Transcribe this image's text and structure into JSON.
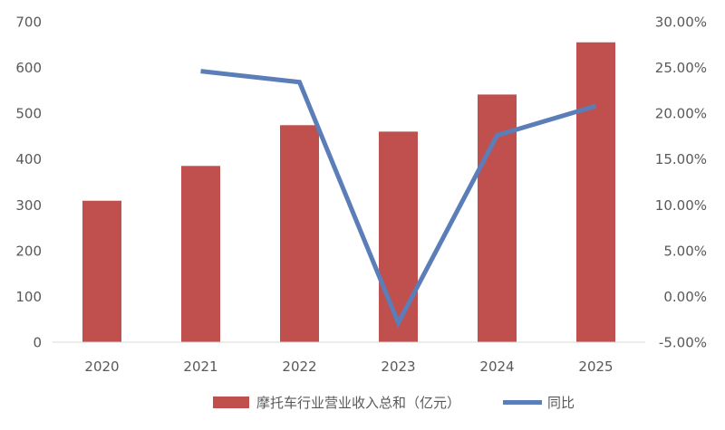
{
  "chart_data": {
    "type": "bar",
    "title": "",
    "categories": [
      "2020",
      "2021",
      "2022",
      "2023",
      "2024",
      "2025"
    ],
    "series": [
      {
        "name": "摩托车行业营业收入总和（亿元）",
        "type": "bar",
        "axis": "left",
        "color": "#c0504d",
        "values": [
          309,
          385,
          474,
          460,
          541,
          655
        ]
      },
      {
        "name": "同比",
        "type": "line",
        "axis": "right",
        "color": "#5b7db8",
        "values": [
          null,
          0.246,
          0.234,
          -0.029,
          0.176,
          0.208
        ]
      }
    ],
    "y_left": {
      "min": 0,
      "max": 700,
      "ticks": [
        0,
        100,
        200,
        300,
        400,
        500,
        600,
        700
      ],
      "tick_labels": [
        "0",
        "100",
        "200",
        "300",
        "400",
        "500",
        "600",
        "700"
      ]
    },
    "y_right": {
      "min": -0.05,
      "max": 0.3,
      "ticks": [
        -0.05,
        0,
        0.05,
        0.1,
        0.15,
        0.2,
        0.25,
        0.3
      ],
      "tick_labels": [
        "-5.00%",
        "0.00%",
        "5.00%",
        "10.00%",
        "15.00%",
        "20.00%",
        "25.00%",
        "30.00%"
      ]
    },
    "grid": false,
    "legend_position": "bottom"
  }
}
